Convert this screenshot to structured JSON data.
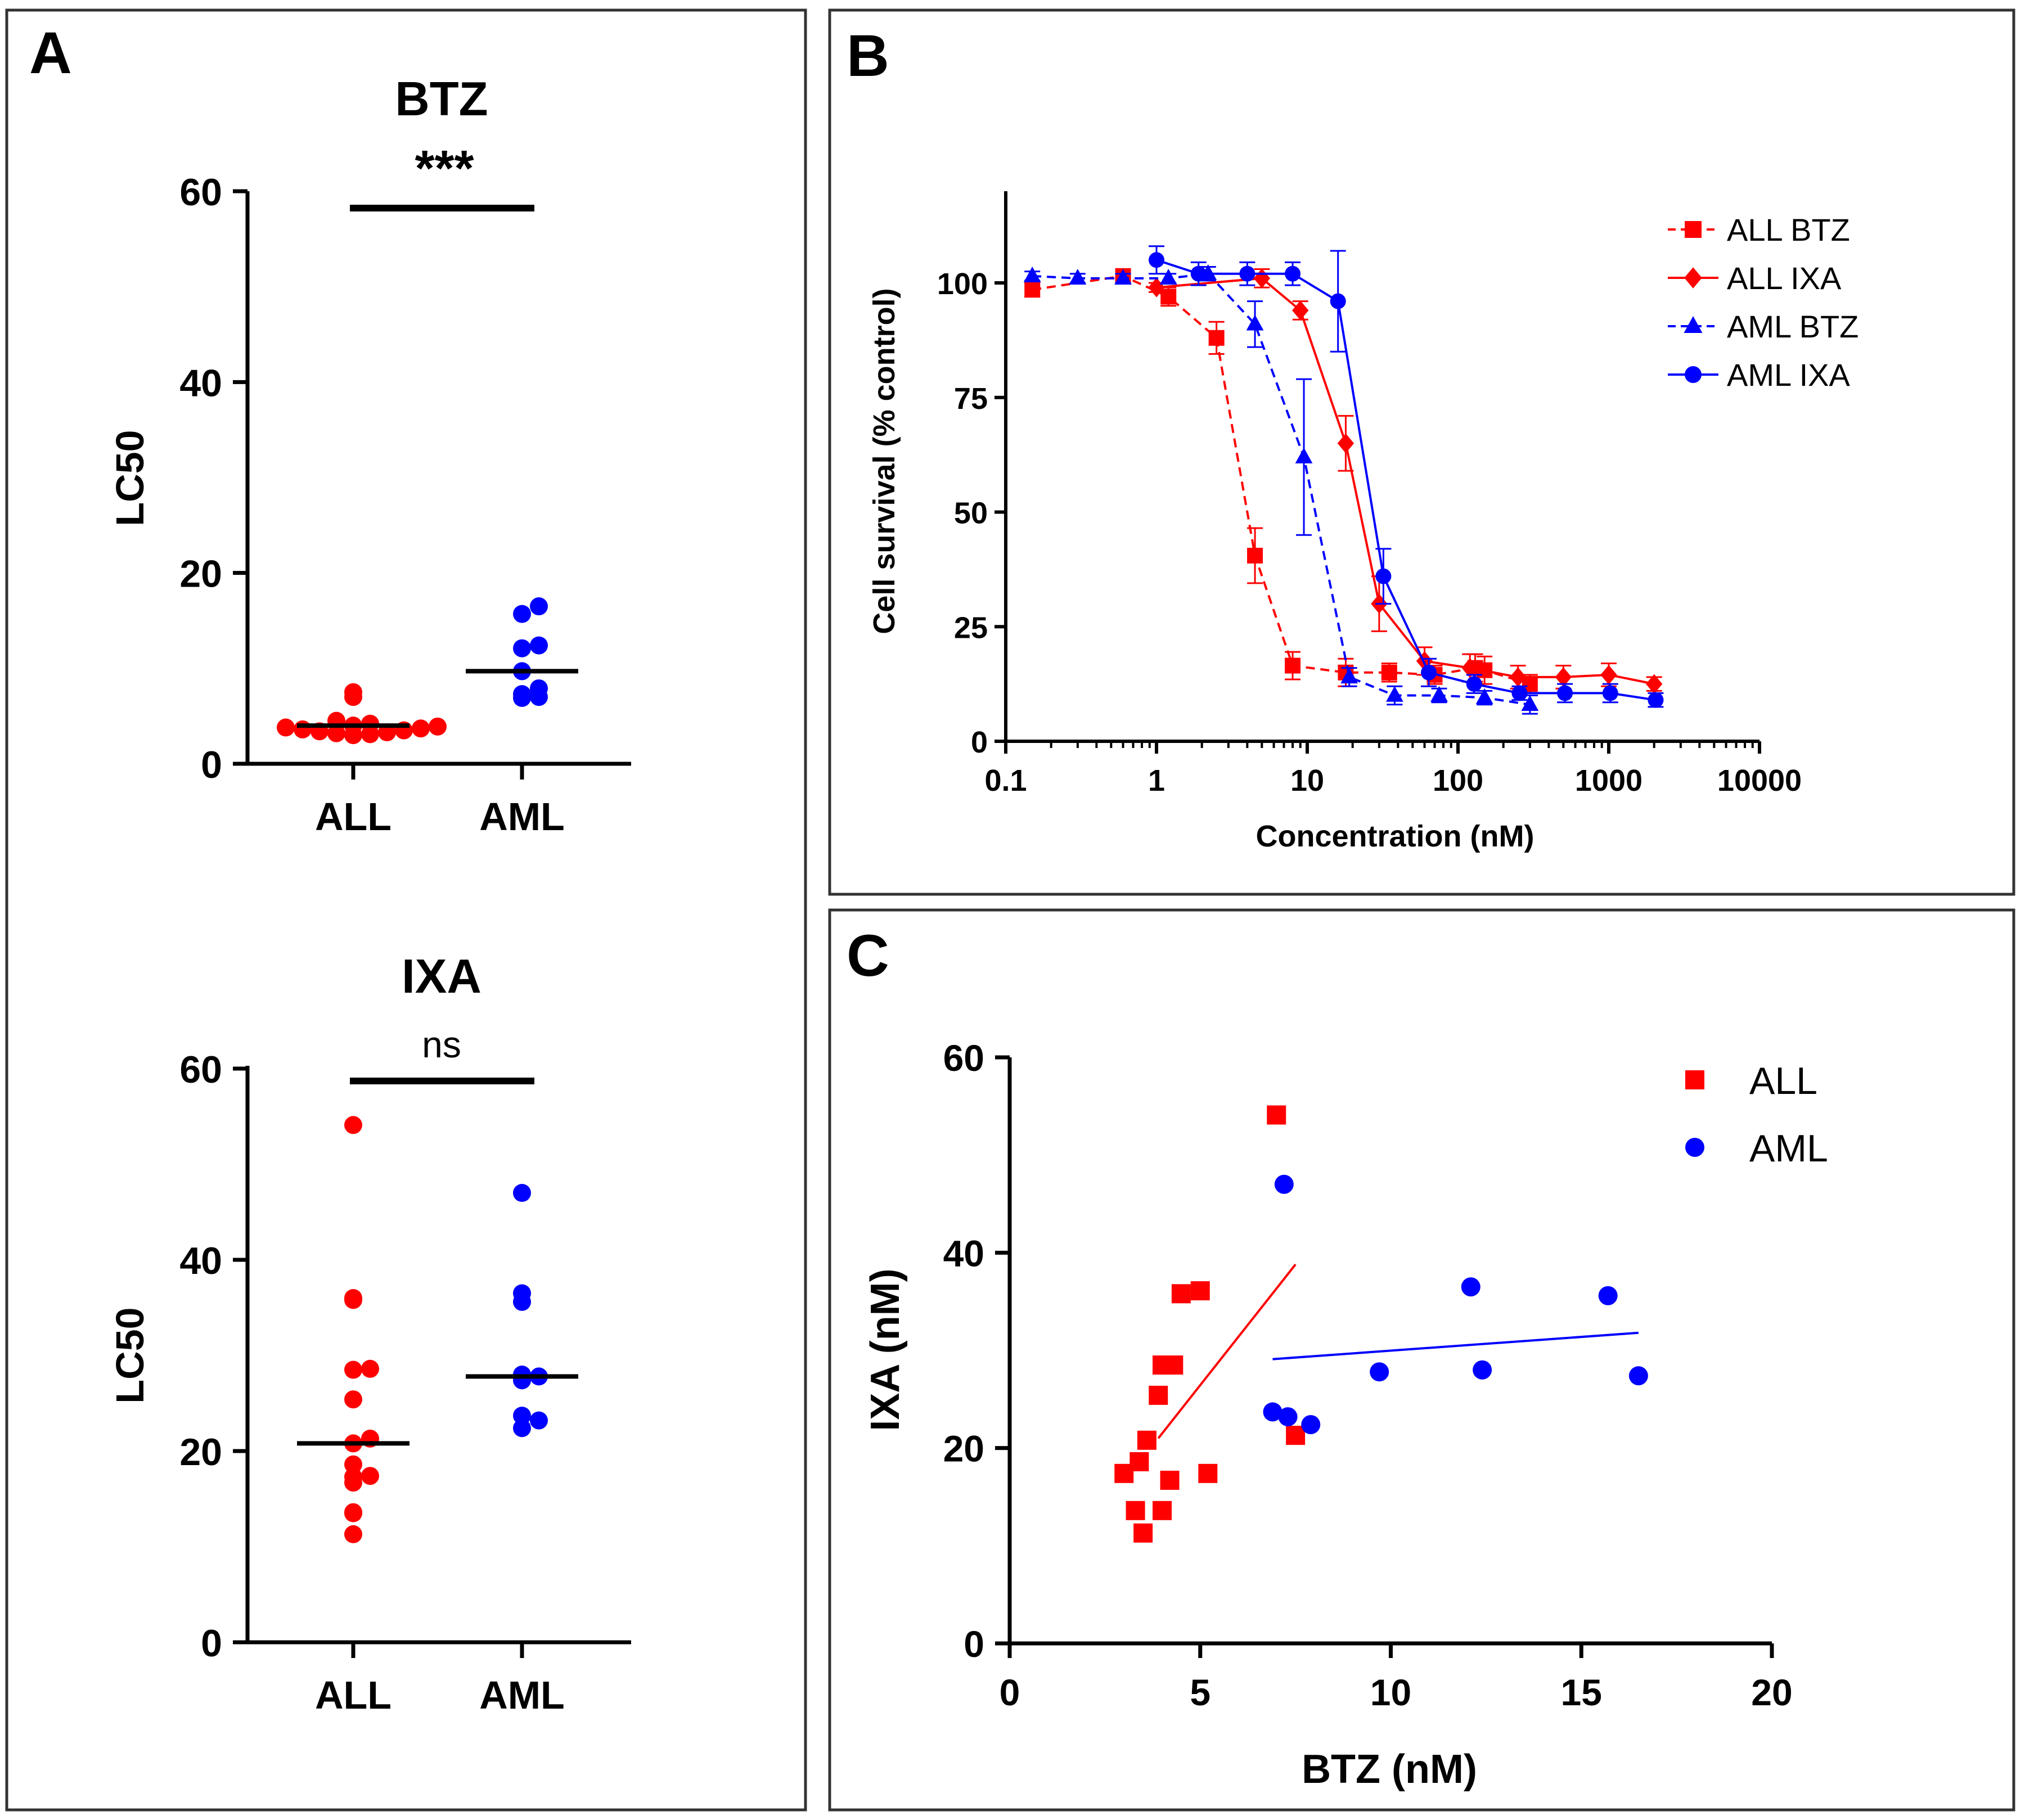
{
  "colors": {
    "all": "#ff0000",
    "aml": "#0000ff",
    "axis": "#000000",
    "frame": "#333333"
  },
  "chart_data": [
    {
      "panel": "A",
      "type": "scatter",
      "title": "BTZ",
      "ylabel": "LC50",
      "categories": [
        "ALL",
        "AML"
      ],
      "ylim": [
        0,
        60
      ],
      "yticks": [
        0,
        20,
        40,
        60
      ],
      "significance": "***",
      "series": [
        {
          "name": "ALL",
          "color": "#ff0000",
          "median": 4.0,
          "values": [
            7.5,
            7.0,
            4.5,
            4.2,
            4.0,
            3.9,
            3.8,
            3.7,
            3.6,
            3.5,
            3.4,
            3.3,
            3.2,
            3.1,
            3.0
          ]
        },
        {
          "name": "AML",
          "color": "#0000ff",
          "median": 9.7,
          "values": [
            16.5,
            15.7,
            12.4,
            12.1,
            9.7,
            7.9,
            7.3,
            7.0,
            6.9
          ]
        }
      ]
    },
    {
      "panel": "A",
      "type": "scatter",
      "title": "IXA",
      "ylabel": "LC50",
      "categories": [
        "ALL",
        "AML"
      ],
      "ylim": [
        0,
        60
      ],
      "yticks": [
        0,
        20,
        40,
        60
      ],
      "significance": "ns",
      "series": [
        {
          "name": "ALL",
          "color": "#ff0000",
          "median": 20.8,
          "values": [
            54.1,
            36.0,
            35.8,
            28.6,
            28.5,
            25.4,
            21.3,
            20.8,
            18.6,
            17.4,
            17.3,
            16.7,
            13.6,
            13.5,
            11.3
          ]
        },
        {
          "name": "AML",
          "color": "#0000ff",
          "median": 27.8,
          "values": [
            47.0,
            36.5,
            35.6,
            28.0,
            27.8,
            27.4,
            23.7,
            23.2,
            22.4
          ]
        }
      ]
    },
    {
      "panel": "B",
      "type": "line",
      "xscale": "log",
      "xlabel": "Concentration (nM)",
      "ylabel": "Cell survival (% control)",
      "xlim": [
        0.1,
        10000
      ],
      "xticks": [
        0.1,
        1,
        10,
        100,
        1000,
        10000
      ],
      "xtick_labels": [
        "0.1",
        "1",
        "10",
        "100",
        "1000",
        "10000"
      ],
      "ylim": [
        0,
        120
      ],
      "yticks": [
        0,
        25,
        50,
        75,
        100
      ],
      "legend_position": "top-right",
      "series": [
        {
          "name": "ALL BTZ",
          "color": "#ff0000",
          "marker": "square",
          "dashed": true,
          "x": [
            0.15,
            0.6,
            1.2,
            2.5,
            4.5,
            8,
            18,
            35,
            70,
            130,
            150,
            300
          ],
          "y": [
            98.5,
            101.5,
            97,
            88,
            40.5,
            16.5,
            15,
            15,
            14.5,
            16,
            15.5,
            12.5
          ],
          "err": [
            1.5,
            1,
            2,
            3.5,
            6,
            3,
            3,
            2,
            2,
            3,
            3,
            2
          ]
        },
        {
          "name": "ALL IXA",
          "color": "#ff0000",
          "marker": "diamond",
          "dashed": false,
          "x": [
            1.0,
            5.0,
            9.0,
            18.0,
            30,
            60,
            120,
            250,
            500,
            1000,
            2000
          ],
          "y": [
            99,
            101,
            94,
            65,
            30,
            17.5,
            16,
            14,
            14,
            14.5,
            12.5
          ],
          "err": [
            1,
            2,
            2,
            6,
            6,
            3,
            3,
            2.5,
            2.5,
            2.5,
            1.5
          ]
        },
        {
          "name": "AML BTZ",
          "color": "#0000ff",
          "marker": "triangle",
          "dashed": true,
          "x": [
            0.15,
            0.3,
            0.6,
            1.2,
            2.2,
            4.5,
            9.5,
            19,
            38,
            75,
            150,
            300
          ],
          "y": [
            101.5,
            101,
            101,
            101,
            102,
            91,
            62,
            14,
            10,
            10,
            9.5,
            8
          ],
          "err": [
            1,
            1,
            1,
            1,
            1.5,
            5,
            17,
            2,
            2,
            1.5,
            1.5,
            2
          ]
        },
        {
          "name": "AML IXA",
          "color": "#0000ff",
          "marker": "circle",
          "dashed": false,
          "x": [
            1.0,
            1.9,
            4.0,
            8.0,
            16,
            32,
            64,
            128,
            256,
            512,
            1024,
            2048
          ],
          "y": [
            105,
            102,
            102,
            102,
            96,
            36,
            15,
            12.5,
            10.5,
            10.5,
            10.5,
            9
          ],
          "err": [
            3,
            2.5,
            2.5,
            2.5,
            11,
            6,
            3,
            2,
            1.5,
            2,
            2,
            1.5
          ]
        }
      ]
    },
    {
      "panel": "C",
      "type": "scatter",
      "xlabel": "BTZ (nM)",
      "ylabel": "IXA (nM)",
      "xlim": [
        0,
        20
      ],
      "xticks": [
        0,
        5,
        10,
        15,
        20
      ],
      "ylim": [
        0,
        60
      ],
      "yticks": [
        0,
        20,
        40,
        60
      ],
      "legend_position": "top-right",
      "series": [
        {
          "name": "ALL",
          "color": "#ff0000",
          "marker": "square",
          "x": [
            7.0,
            5.0,
            4.5,
            4.0,
            4.3,
            3.9,
            7.5,
            3.6,
            3.4,
            3.0,
            5.2,
            4.2,
            3.3,
            4.0,
            3.5
          ],
          "y": [
            54.1,
            36.1,
            35.8,
            28.5,
            28.5,
            25.4,
            21.3,
            20.8,
            18.6,
            17.4,
            17.4,
            16.7,
            13.6,
            13.6,
            11.3
          ],
          "fit": {
            "x": [
              3.9,
              7.5
            ],
            "y": [
              21.0,
              38.8
            ]
          }
        },
        {
          "name": "AML",
          "color": "#0000ff",
          "marker": "circle",
          "x": [
            7.2,
            12.1,
            15.7,
            12.4,
            9.7,
            16.5,
            6.9,
            7.3,
            7.9
          ],
          "y": [
            47.0,
            36.5,
            35.6,
            28.0,
            27.8,
            27.4,
            23.7,
            23.2,
            22.4
          ],
          "fit": {
            "x": [
              6.9,
              16.5
            ],
            "y": [
              29.1,
              31.8
            ]
          }
        }
      ]
    }
  ],
  "panels": {
    "a": "A",
    "b": "B",
    "c": "C"
  }
}
